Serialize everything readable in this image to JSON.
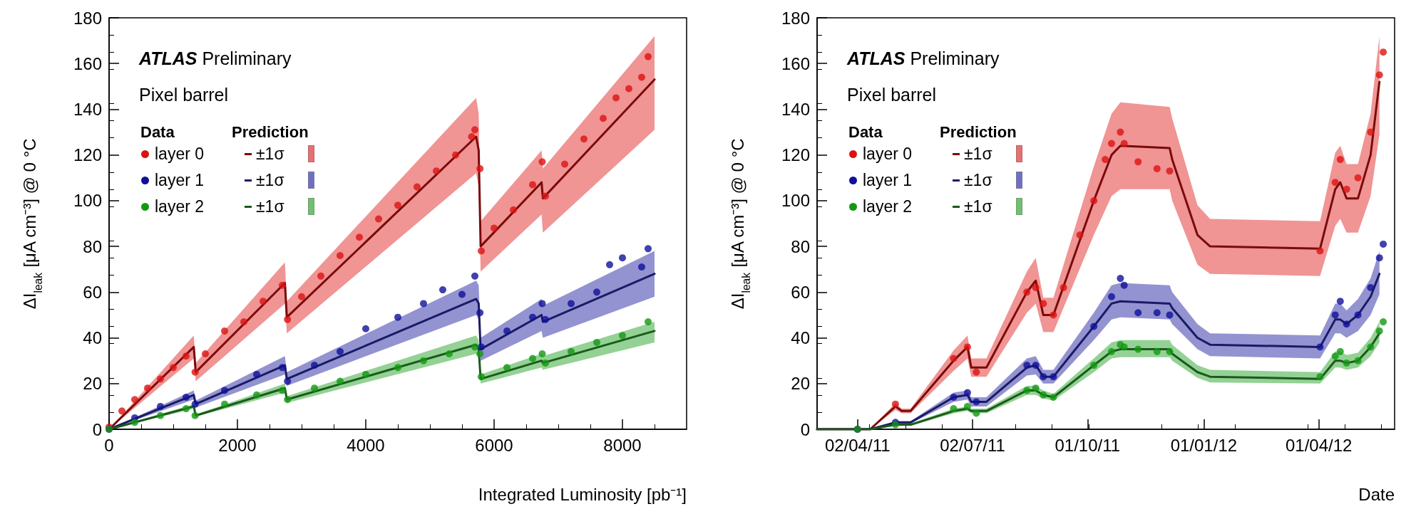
{
  "chart_data": [
    {
      "type": "scatter",
      "xlabel": "Integrated Luminosity [pb⁻¹]",
      "ylabel": "ΔI$_{leak}$ [μA cm⁻³] @ 0 °C",
      "xlim": [
        0,
        9000
      ],
      "xticks": [
        0,
        2000,
        4000,
        6000,
        8000
      ],
      "ylim": [
        0,
        180
      ],
      "yticks": [
        0,
        20,
        40,
        60,
        80,
        100,
        120,
        140,
        160,
        180
      ],
      "grid": false,
      "legend": "top left",
      "marker": "circle",
      "annotations": [
        "ATLAS Preliminary",
        "Pixel barrel",
        "Data",
        "Prediction"
      ],
      "series": [
        {
          "name": "layer 0",
          "color": "#dd1111",
          "x": [
            0,
            200,
            400,
            600,
            800,
            1000,
            1200,
            1340,
            1500,
            1800,
            2100,
            2400,
            2700,
            2780,
            3000,
            3300,
            3600,
            3900,
            4200,
            4500,
            4800,
            5100,
            5400,
            5650,
            5700,
            5780,
            5800,
            6000,
            6300,
            6600,
            6750,
            6800,
            7100,
            7400,
            7700,
            7900,
            8100,
            8300,
            8400
          ],
          "values": [
            1,
            8,
            13,
            18,
            22,
            27,
            32,
            25,
            33,
            43,
            47,
            56,
            63,
            48,
            58,
            67,
            76,
            84,
            92,
            98,
            106,
            113,
            120,
            128,
            131,
            114,
            78,
            88,
            96,
            107,
            117,
            102,
            116,
            127,
            136,
            145,
            149,
            154,
            163
          ]
        },
        {
          "name": "layer 1",
          "color": "#10109a",
          "x": [
            0,
            400,
            800,
            1200,
            1340,
            1800,
            2300,
            2700,
            2780,
            3200,
            3600,
            4000,
            4500,
            4900,
            5200,
            5500,
            5700,
            5780,
            5800,
            6200,
            6600,
            6750,
            6800,
            7200,
            7600,
            7800,
            8000,
            8300,
            8400
          ],
          "values": [
            0,
            5,
            10,
            14,
            11,
            17,
            24,
            27,
            21,
            28,
            34,
            44,
            49,
            55,
            61,
            59,
            67,
            51,
            36,
            43,
            49,
            55,
            48,
            55,
            60,
            72,
            75,
            71,
            79
          ]
        },
        {
          "name": "layer 2",
          "color": "#119911",
          "x": [
            0,
            400,
            800,
            1200,
            1340,
            1800,
            2300,
            2700,
            2780,
            3200,
            3600,
            4000,
            4500,
            4900,
            5300,
            5700,
            5780,
            5800,
            6200,
            6600,
            6750,
            6800,
            7200,
            7600,
            8000,
            8400
          ],
          "values": [
            0,
            3,
            6,
            9,
            6,
            11,
            15,
            17,
            13,
            18,
            21,
            24,
            27,
            30,
            33,
            36,
            33,
            23,
            27,
            31,
            33,
            29,
            34,
            38,
            41,
            47
          ]
        },
        {
          "name": "±1σ",
          "type": "line",
          "marker": "none",
          "color": "#7a0a0a",
          "x": [
            0,
            1320,
            1350,
            2740,
            2770,
            5720,
            5760,
            5790,
            6740,
            6760,
            8500
          ],
          "values": [
            0,
            36,
            25,
            64,
            49,
            128,
            122,
            80,
            108,
            101,
            153
          ],
          "lower": [
            0,
            31,
            21,
            55,
            42,
            112,
            106,
            69,
            94,
            86,
            131
          ],
          "upper": [
            0,
            41,
            29,
            73,
            56,
            145,
            138,
            91,
            122,
            114,
            172
          ]
        },
        {
          "name": "±1σ",
          "type": "line",
          "marker": "none",
          "color": "#1a1a66",
          "x": [
            0,
            1320,
            1350,
            2740,
            2770,
            5720,
            5760,
            5790,
            6740,
            6760,
            8500
          ],
          "values": [
            0,
            15,
            11,
            28,
            22,
            57,
            55,
            35,
            50,
            47,
            68
          ],
          "lower": [
            0,
            13,
            9.5,
            24,
            19,
            50,
            48,
            30,
            43,
            40,
            58
          ],
          "upper": [
            0,
            17,
            12.5,
            32,
            25,
            65,
            63,
            40,
            57,
            54,
            78
          ]
        },
        {
          "name": "±1σ",
          "type": "line",
          "marker": "none",
          "color": "#1a5a1a",
          "x": [
            0,
            1320,
            1350,
            2740,
            2770,
            5720,
            5760,
            5790,
            6740,
            6760,
            8500
          ],
          "values": [
            0,
            10,
            6,
            18,
            13,
            37,
            35,
            22,
            30,
            29,
            43
          ],
          "lower": [
            0,
            9,
            5.5,
            16,
            11.5,
            33,
            31,
            20,
            27,
            26,
            38
          ],
          "upper": [
            0,
            11,
            6.5,
            20,
            14.5,
            41,
            39,
            24,
            33,
            32,
            47
          ]
        }
      ]
    },
    {
      "type": "scatter",
      "xlabel": "Date",
      "ylabel": "ΔI$_{leak}$ [μA cm⁻³] @ 0 °C",
      "xlim": [
        "2011-03-01",
        "2012-05-31"
      ],
      "xticks": [
        {
          "value": "2011-04-02",
          "label": "02/04/11"
        },
        {
          "value": "2011-07-02",
          "label": "02/07/11"
        },
        {
          "value": "2011-10-01",
          "label": "01/10/11"
        },
        {
          "value": "2012-01-01",
          "label": "01/01/12"
        },
        {
          "value": "2012-04-01",
          "label": "01/04/12"
        }
      ],
      "ylim": [
        0,
        180
      ],
      "yticks": [
        0,
        20,
        40,
        60,
        80,
        100,
        120,
        140,
        160,
        180
      ],
      "grid": false,
      "legend": "top left",
      "marker": "circle",
      "annotations": [
        "ATLAS Preliminary",
        "Pixel barrel",
        "Data",
        "Prediction"
      ],
      "series": [
        {
          "name": "layer 0",
          "color": "#dd1111",
          "x": [
            "2011-04-02",
            "2011-05-02",
            "2011-06-17",
            "2011-06-28",
            "2011-07-05",
            "2011-08-14",
            "2011-08-21",
            "2011-08-27",
            "2011-09-04",
            "2011-09-12",
            "2011-09-25",
            "2011-10-06",
            "2011-10-15",
            "2011-10-20",
            "2011-10-27",
            "2011-10-30",
            "2011-11-10",
            "2011-11-25",
            "2011-12-05",
            "2012-04-02",
            "2012-04-14",
            "2012-04-18",
            "2012-04-23",
            "2012-05-02",
            "2012-05-12",
            "2012-05-19",
            "2012-05-22"
          ],
          "values": [
            0,
            11,
            31,
            36,
            25,
            60,
            62,
            55,
            50,
            62,
            85,
            100,
            118,
            125,
            130,
            125,
            117,
            114,
            113,
            78,
            108,
            118,
            105,
            110,
            130,
            155,
            165
          ]
        },
        {
          "name": "layer 1",
          "color": "#10109a",
          "x": [
            "2011-04-02",
            "2011-05-02",
            "2011-06-17",
            "2011-06-28",
            "2011-07-05",
            "2011-08-14",
            "2011-08-21",
            "2011-08-27",
            "2011-09-04",
            "2011-10-06",
            "2011-10-20",
            "2011-10-27",
            "2011-10-30",
            "2011-11-10",
            "2011-11-25",
            "2011-12-05",
            "2012-04-02",
            "2012-04-14",
            "2012-04-18",
            "2012-04-23",
            "2012-05-02",
            "2012-05-12",
            "2012-05-19",
            "2012-05-22"
          ],
          "values": [
            0,
            3,
            14,
            16,
            12,
            28,
            28,
            23,
            23,
            45,
            58,
            66,
            63,
            51,
            51,
            50,
            36,
            50,
            56,
            46,
            50,
            62,
            75,
            81
          ]
        },
        {
          "name": "layer 2",
          "color": "#119911",
          "x": [
            "2011-04-02",
            "2011-05-02",
            "2011-06-17",
            "2011-06-28",
            "2011-07-05",
            "2011-08-14",
            "2011-08-21",
            "2011-08-27",
            "2011-09-04",
            "2011-10-06",
            "2011-10-20",
            "2011-10-27",
            "2011-10-30",
            "2011-11-10",
            "2011-11-25",
            "2011-12-05",
            "2012-04-02",
            "2012-04-14",
            "2012-04-18",
            "2012-04-23",
            "2012-05-02",
            "2012-05-12",
            "2012-05-19",
            "2012-05-22"
          ],
          "values": [
            0,
            2,
            9,
            10,
            7,
            17,
            18,
            15,
            14,
            28,
            34,
            37,
            36,
            35,
            34,
            34,
            23,
            32,
            34,
            29,
            30,
            36,
            43,
            47
          ]
        },
        {
          "name": "±1σ",
          "type": "line",
          "marker": "none",
          "color": "#7a0a0a",
          "x": [
            "2011-03-01",
            "2011-04-12",
            "2011-05-02",
            "2011-05-07",
            "2011-05-14",
            "2011-06-17",
            "2011-06-28",
            "2011-07-01",
            "2011-07-13",
            "2011-08-14",
            "2011-08-21",
            "2011-08-27",
            "2011-09-04",
            "2011-10-06",
            "2011-10-20",
            "2011-10-27",
            "2011-12-05",
            "2011-12-07",
            "2011-12-27",
            "2012-01-06",
            "2012-04-02",
            "2012-04-14",
            "2012-04-18",
            "2012-04-23",
            "2012-05-02",
            "2012-05-12",
            "2012-05-19"
          ],
          "values": [
            0,
            0,
            10,
            8,
            8,
            30,
            36,
            27,
            27,
            60,
            65,
            50,
            50,
            100,
            120,
            124,
            123,
            118,
            85,
            80,
            79,
            105,
            108,
            101,
            101,
            120,
            152
          ],
          "lower": [
            0,
            0,
            8.5,
            7,
            7,
            25.5,
            31,
            23,
            23,
            51,
            55,
            42.5,
            42.5,
            85,
            102,
            105,
            105,
            100,
            72,
            68,
            67,
            89,
            92,
            86,
            86,
            102,
            129
          ],
          "upper": [
            0,
            0,
            11.5,
            9,
            9,
            34.5,
            41,
            31,
            31,
            69,
            75,
            57.5,
            57.5,
            115,
            138,
            143,
            141,
            136,
            98,
            92,
            91,
            121,
            124,
            116,
            116,
            138,
            172
          ]
        },
        {
          "name": "±1σ",
          "type": "line",
          "marker": "none",
          "color": "#1a1a66",
          "x": [
            "2011-03-01",
            "2011-04-12",
            "2011-05-02",
            "2011-05-07",
            "2011-05-14",
            "2011-06-17",
            "2011-06-28",
            "2011-07-01",
            "2011-07-13",
            "2011-08-14",
            "2011-08-21",
            "2011-08-27",
            "2011-09-04",
            "2011-10-06",
            "2011-10-20",
            "2011-10-27",
            "2011-12-05",
            "2011-12-07",
            "2011-12-27",
            "2012-01-06",
            "2012-04-02",
            "2012-04-14",
            "2012-04-18",
            "2012-04-23",
            "2012-05-02",
            "2012-05-12",
            "2012-05-19"
          ],
          "values": [
            0,
            0,
            3,
            3,
            3,
            14,
            15,
            12,
            12,
            27,
            28,
            23,
            23,
            45,
            55,
            56,
            55,
            53,
            40,
            37,
            36,
            48,
            48,
            46,
            50,
            58,
            68
          ],
          "lower": [
            0,
            0,
            2.5,
            2.5,
            2.5,
            12,
            13,
            10,
            10,
            23.5,
            24,
            20,
            20,
            39,
            48,
            49,
            48,
            46,
            35,
            32,
            31,
            42,
            42,
            40,
            43,
            50,
            59
          ],
          "upper": [
            0,
            0,
            3.5,
            3.5,
            3.5,
            16,
            17,
            14,
            14,
            31,
            32,
            26,
            26,
            51,
            63,
            64,
            63,
            60,
            46,
            42,
            41,
            55,
            55,
            52,
            57,
            66,
            78
          ]
        },
        {
          "name": "±1σ",
          "type": "line",
          "marker": "none",
          "color": "#1a5a1a",
          "x": [
            "2011-03-01",
            "2011-04-12",
            "2011-05-02",
            "2011-05-07",
            "2011-05-14",
            "2011-06-17",
            "2011-06-28",
            "2011-07-01",
            "2011-07-13",
            "2011-08-14",
            "2011-08-21",
            "2011-08-27",
            "2011-09-04",
            "2011-10-06",
            "2011-10-20",
            "2011-10-27",
            "2011-12-05",
            "2011-12-07",
            "2011-12-27",
            "2012-01-06",
            "2012-04-02",
            "2012-04-14",
            "2012-04-18",
            "2012-04-23",
            "2012-05-02",
            "2012-05-12",
            "2012-05-19"
          ],
          "values": [
            0,
            0,
            2,
            2,
            2,
            8,
            9,
            8,
            8,
            17,
            17,
            15,
            14,
            28,
            34,
            35,
            35,
            33,
            25,
            23,
            22,
            30,
            30,
            29,
            30,
            36,
            42
          ],
          "lower": [
            0,
            0,
            1.5,
            1.5,
            1.5,
            7,
            8,
            7,
            7,
            15,
            15,
            13.5,
            12.5,
            25,
            31,
            31.5,
            31.5,
            30,
            22.5,
            20.5,
            20,
            27,
            27,
            26,
            27,
            32,
            38
          ],
          "upper": [
            0,
            0,
            2.5,
            2.5,
            2.5,
            9,
            10,
            9,
            9,
            19,
            19,
            17,
            15.5,
            31,
            38,
            39,
            39,
            37,
            28,
            26,
            25,
            34,
            34,
            32.5,
            33.5,
            40,
            47
          ]
        }
      ]
    }
  ]
}
